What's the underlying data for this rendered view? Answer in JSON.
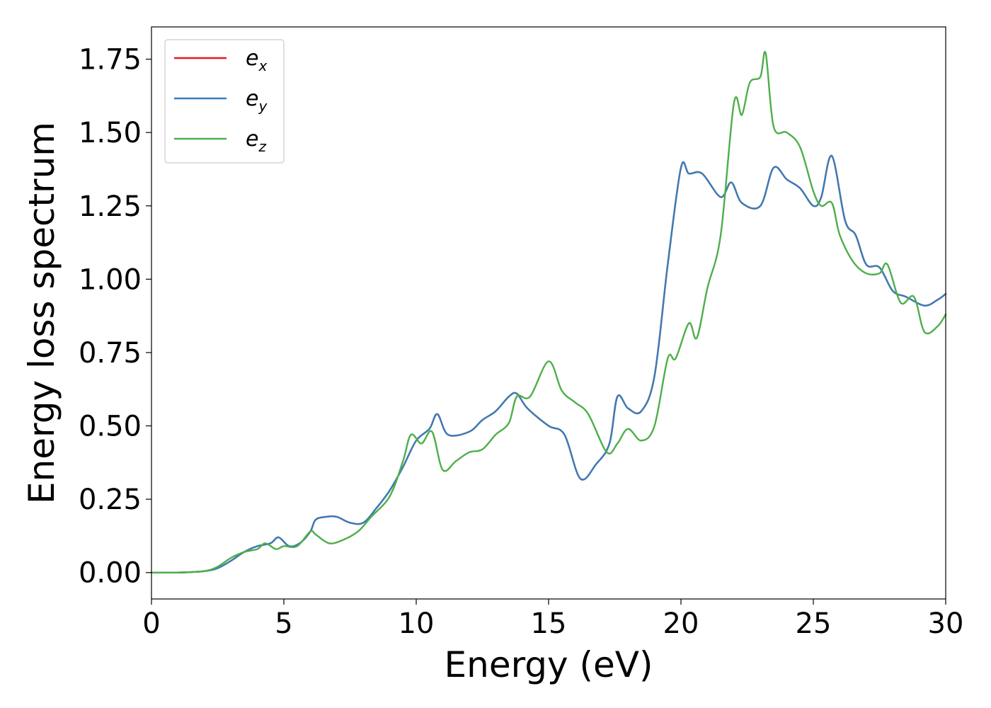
{
  "chart_data": {
    "type": "line",
    "title": "",
    "xlabel": "Energy (eV)",
    "ylabel": "Energy loss spectrum",
    "xlim": [
      0,
      30
    ],
    "ylim": [
      -0.09,
      1.86
    ],
    "xticks": [
      0,
      5,
      10,
      15,
      20,
      25,
      30
    ],
    "xtick_labels": [
      "0",
      "5",
      "10",
      "15",
      "20",
      "25",
      "30"
    ],
    "yticks": [
      0.0,
      0.25,
      0.5,
      0.75,
      1.0,
      1.25,
      1.5,
      1.75
    ],
    "ytick_labels": [
      "0.00",
      "0.25",
      "0.50",
      "0.75",
      "1.00",
      "1.25",
      "1.50",
      "1.75"
    ],
    "grid": false,
    "legend_position": "top-left",
    "series": [
      {
        "name": "e_x",
        "legend_base": "e",
        "legend_sub": "x",
        "color": "#e41a1c",
        "x": [
          0,
          1,
          2,
          2.5,
          3,
          3.5,
          4,
          4.5,
          4.8,
          5.2,
          5.6,
          6,
          6.2,
          6.6,
          7,
          7.5,
          8,
          8.5,
          9,
          9.5,
          10,
          10.5,
          10.8,
          11.2,
          12,
          12.5,
          13,
          13.5,
          13.8,
          14.2,
          15,
          15.6,
          16.2,
          16.8,
          17.3,
          17.6,
          18,
          18.5,
          19,
          19.5,
          20,
          20.3,
          20.8,
          21.5,
          21.9,
          22.3,
          23,
          23.5,
          24,
          24.5,
          25,
          25.3,
          25.7,
          26.2,
          26.6,
          27,
          27.5,
          28,
          28.5,
          29.2,
          29.7,
          30
        ],
        "y": [
          0,
          0,
          0.005,
          0.015,
          0.04,
          0.07,
          0.09,
          0.1,
          0.12,
          0.09,
          0.1,
          0.14,
          0.18,
          0.19,
          0.19,
          0.17,
          0.17,
          0.22,
          0.28,
          0.36,
          0.45,
          0.49,
          0.54,
          0.47,
          0.48,
          0.52,
          0.55,
          0.6,
          0.61,
          0.56,
          0.5,
          0.47,
          0.32,
          0.37,
          0.44,
          0.6,
          0.56,
          0.55,
          0.67,
          1.05,
          1.38,
          1.36,
          1.36,
          1.28,
          1.33,
          1.26,
          1.25,
          1.38,
          1.34,
          1.31,
          1.25,
          1.28,
          1.42,
          1.2,
          1.15,
          1.05,
          1.04,
          0.96,
          0.94,
          0.91,
          0.93,
          0.95
        ]
      },
      {
        "name": "e_y",
        "legend_base": "e",
        "legend_sub": "y",
        "color": "#377eb8",
        "x": [
          0,
          1,
          2,
          2.5,
          3,
          3.5,
          4,
          4.5,
          4.8,
          5.2,
          5.6,
          6,
          6.2,
          6.6,
          7,
          7.5,
          8,
          8.5,
          9,
          9.5,
          10,
          10.5,
          10.8,
          11.2,
          12,
          12.5,
          13,
          13.5,
          13.8,
          14.2,
          15,
          15.6,
          16.2,
          16.8,
          17.3,
          17.6,
          18,
          18.5,
          19,
          19.5,
          20,
          20.3,
          20.8,
          21.5,
          21.9,
          22.3,
          23,
          23.5,
          24,
          24.5,
          25,
          25.3,
          25.7,
          26.2,
          26.6,
          27,
          27.5,
          28,
          28.5,
          29.2,
          29.7,
          30
        ],
        "y": [
          0,
          0,
          0.005,
          0.015,
          0.04,
          0.07,
          0.09,
          0.1,
          0.12,
          0.09,
          0.1,
          0.14,
          0.18,
          0.19,
          0.19,
          0.17,
          0.17,
          0.22,
          0.28,
          0.36,
          0.45,
          0.49,
          0.54,
          0.47,
          0.48,
          0.52,
          0.55,
          0.6,
          0.61,
          0.56,
          0.5,
          0.47,
          0.32,
          0.37,
          0.44,
          0.6,
          0.56,
          0.55,
          0.67,
          1.05,
          1.38,
          1.36,
          1.36,
          1.28,
          1.33,
          1.26,
          1.25,
          1.38,
          1.34,
          1.31,
          1.25,
          1.28,
          1.42,
          1.2,
          1.15,
          1.05,
          1.04,
          0.96,
          0.94,
          0.91,
          0.93,
          0.95
        ]
      },
      {
        "name": "e_z",
        "legend_base": "e",
        "legend_sub": "z",
        "color": "#4daf4a",
        "x": [
          0,
          1,
          2,
          2.5,
          3,
          3.5,
          4,
          4.3,
          4.7,
          5,
          5.5,
          6,
          6.2,
          6.7,
          7.2,
          7.8,
          8.3,
          9,
          9.5,
          9.8,
          10.2,
          10.6,
          11,
          11.5,
          12,
          12.5,
          13,
          13.5,
          13.8,
          14.3,
          15,
          15.5,
          16,
          16.5,
          17.2,
          17.6,
          18,
          18.5,
          19,
          19.5,
          19.8,
          20.3,
          20.6,
          21,
          21.5,
          22,
          22.3,
          22.6,
          23,
          23.2,
          23.5,
          24,
          24.5,
          25,
          25.3,
          25.7,
          26,
          26.5,
          27,
          27.5,
          27.8,
          28.3,
          28.8,
          29.2,
          29.7,
          30
        ],
        "y": [
          0,
          0,
          0.005,
          0.02,
          0.05,
          0.07,
          0.08,
          0.1,
          0.08,
          0.09,
          0.09,
          0.14,
          0.13,
          0.1,
          0.11,
          0.14,
          0.19,
          0.26,
          0.38,
          0.47,
          0.44,
          0.48,
          0.35,
          0.38,
          0.41,
          0.42,
          0.47,
          0.51,
          0.6,
          0.6,
          0.72,
          0.62,
          0.58,
          0.54,
          0.41,
          0.44,
          0.49,
          0.45,
          0.5,
          0.73,
          0.73,
          0.85,
          0.8,
          0.97,
          1.15,
          1.6,
          1.56,
          1.67,
          1.69,
          1.77,
          1.52,
          1.5,
          1.45,
          1.3,
          1.25,
          1.26,
          1.15,
          1.06,
          1.02,
          1.02,
          1.05,
          0.92,
          0.94,
          0.82,
          0.84,
          0.88
        ]
      }
    ]
  }
}
